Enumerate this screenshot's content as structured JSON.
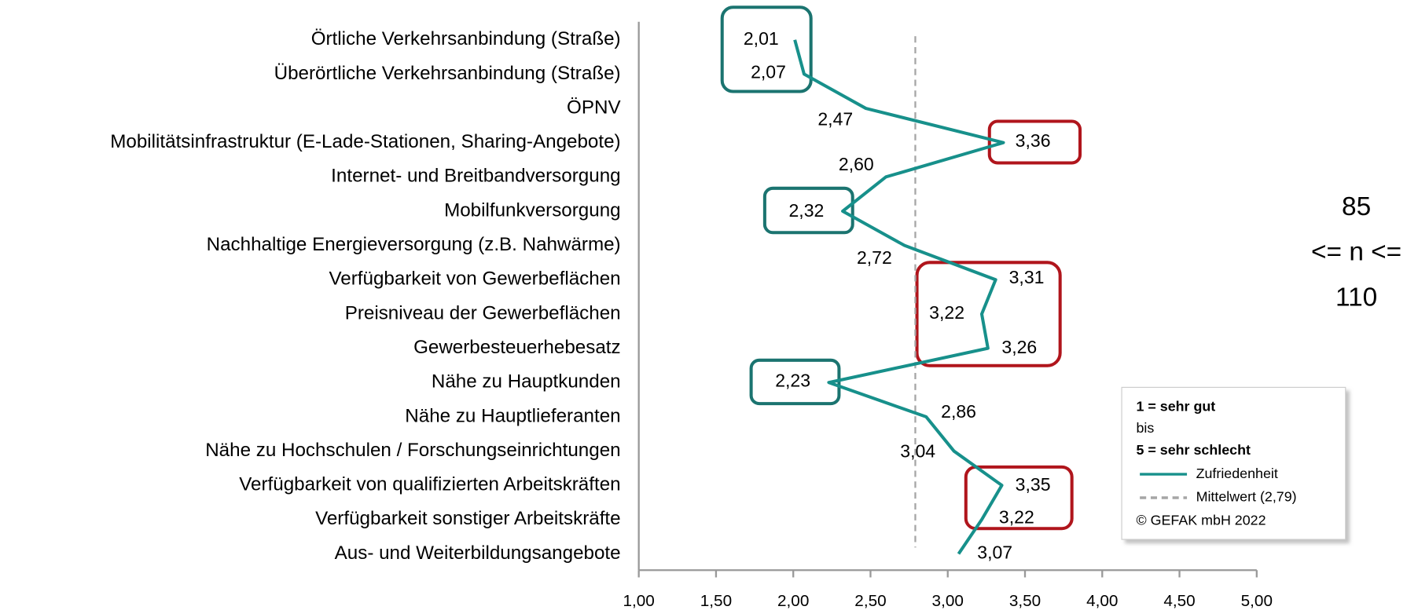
{
  "chart_data": {
    "type": "line",
    "orientation": "horizontal",
    "categories": [
      "Örtliche Verkehrsanbindung (Straße)",
      "Überörtliche Verkehrsanbindung (Straße)",
      "ÖPNV",
      "Mobilitätsinfrastruktur (E-Lade-Stationen, Sharing-Angebote)",
      "Internet- und Breitbandversorgung",
      "Mobilfunkversorgung",
      "Nachhaltige Energieversorgung (z.B. Nahwärme)",
      "Verfügbarkeit von Gewerbeflächen",
      "Preisniveau der Gewerbeflächen",
      "Gewerbesteuerhebesatz",
      "Nähe zu Hauptkunden",
      "Nähe zu Hauptlieferanten",
      "Nähe zu Hochschulen / Forschungseinrichtungen",
      "Verfügbarkeit von qualifizierten Arbeitskräften",
      "Verfügbarkeit sonstiger Arbeitskräfte",
      "Aus- und Weiterbildungsangebote"
    ],
    "series": [
      {
        "name": "Zufriedenheit",
        "color": "#17908b",
        "values": [
          2.01,
          2.07,
          2.47,
          3.36,
          2.6,
          2.32,
          2.72,
          3.31,
          3.22,
          3.26,
          2.23,
          2.86,
          3.04,
          3.35,
          3.22,
          3.07
        ],
        "value_labels": [
          "2,01",
          "2,07",
          "2,47",
          "3,36",
          "2,60",
          "2,32",
          "2,72",
          "3,31",
          "3,22",
          "3,26",
          "2,23",
          "2,86",
          "3,04",
          "3,35",
          "3,22",
          "3,07"
        ]
      }
    ],
    "reference_line": {
      "name": "Mittelwert (2,79)",
      "value": 2.79,
      "color": "#a6a6a6"
    },
    "xlim": [
      1,
      5
    ],
    "xticks": [
      {
        "value": 1,
        "label": "1,00"
      },
      {
        "value": 1.5,
        "label": "1,50"
      },
      {
        "value": 2,
        "label": "2,00"
      },
      {
        "value": 2.5,
        "label": "2,50"
      },
      {
        "value": 3,
        "label": "3,00"
      },
      {
        "value": 3.5,
        "label": "3,50"
      },
      {
        "value": 4,
        "label": "4,00"
      },
      {
        "value": 4.5,
        "label": "4,50"
      },
      {
        "value": 5,
        "label": "5,00"
      }
    ],
    "legend": {
      "notes": [
        "1 = sehr gut",
        "bis",
        "5 = sehr schlecht"
      ],
      "copyright": "© GEFAK mbH 2022",
      "position": "lower right"
    },
    "annotation": [
      "85",
      "<= n <=",
      "110"
    ]
  }
}
